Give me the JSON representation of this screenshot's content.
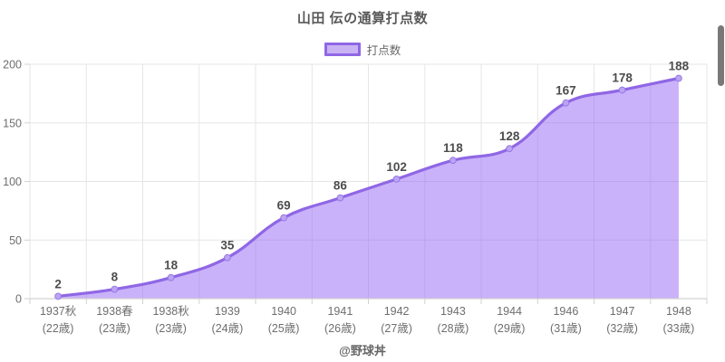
{
  "title": "山田 伝の通算打点数",
  "legend": {
    "label": "打点数"
  },
  "footer": "@野球丼",
  "colors": {
    "accent_line": "#8f67e5",
    "area_fill": "rgba(145,95,245,0.48)",
    "marker_fill": "#bba4f0",
    "marker_stroke": "#9678e8",
    "legend_swatch_fill": "#c9b3f5",
    "gridline": "#e6e6e6",
    "axis_line": "#d2d2d2",
    "tick_text": "#6e6e6e",
    "data_label": "#4d4d4d",
    "title_text": "#595959",
    "scrollbar": "#787878"
  },
  "chart_data": {
    "type": "area",
    "title": "山田 伝の通算打点数",
    "legend_entries": [
      "打点数"
    ],
    "legend_position": "top",
    "grid": true,
    "categories": [
      "1937秋",
      "1938春",
      "1938秋",
      "1939",
      "1940",
      "1941",
      "1942",
      "1943",
      "1944",
      "1946",
      "1947",
      "1948"
    ],
    "category_sublabels": [
      "(22歳)",
      "(23歳)",
      "(23歳)",
      "(24歳)",
      "(25歳)",
      "(26歳)",
      "(27歳)",
      "(28歳)",
      "(29歳)",
      "(31歳)",
      "(32歳)",
      "(33歳)"
    ],
    "series": [
      {
        "name": "打点数",
        "values": [
          2,
          8,
          18,
          35,
          69,
          86,
          102,
          118,
          128,
          167,
          178,
          188
        ]
      }
    ],
    "xlabel": "",
    "ylabel": "",
    "ylim": [
      0,
      200
    ],
    "y_ticks": [
      0,
      50,
      100,
      150,
      200
    ]
  }
}
